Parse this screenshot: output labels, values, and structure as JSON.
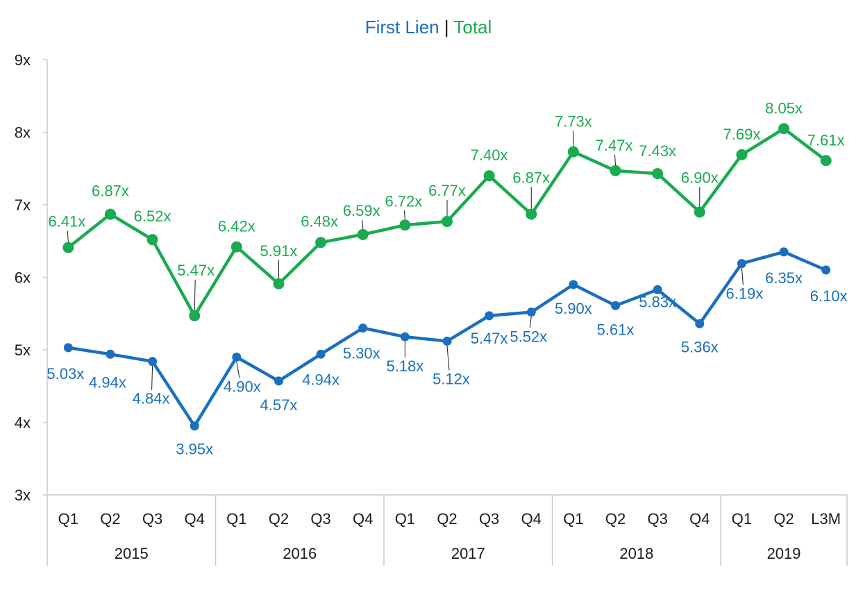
{
  "chart_data": {
    "type": "line",
    "title_parts": [
      {
        "text": "First Lien",
        "color": "#1a6fbf"
      },
      {
        "text": " | ",
        "color": "#1a1a1a"
      },
      {
        "text": "Total",
        "color": "#1aaa50"
      }
    ],
    "categories": [
      "Q1",
      "Q2",
      "Q3",
      "Q4",
      "Q1",
      "Q2",
      "Q3",
      "Q4",
      "Q1",
      "Q2",
      "Q3",
      "Q4",
      "Q1",
      "Q2",
      "Q3",
      "Q4",
      "Q1",
      "Q2",
      "L3M"
    ],
    "year_groups": [
      {
        "label": "2015",
        "start": 0,
        "count": 4
      },
      {
        "label": "2016",
        "start": 4,
        "count": 4
      },
      {
        "label": "2017",
        "start": 8,
        "count": 4
      },
      {
        "label": "2018",
        "start": 12,
        "count": 4
      },
      {
        "label": "2019",
        "start": 16,
        "count": 3
      }
    ],
    "y_ticks": [
      "3x",
      "4x",
      "5x",
      "6x",
      "7x",
      "8x",
      "9x"
    ],
    "ylim": [
      3,
      9
    ],
    "grid": false,
    "series": [
      {
        "name": "Total",
        "color": "#1aaa50",
        "values": [
          6.41,
          6.87,
          6.52,
          5.47,
          6.42,
          5.91,
          6.48,
          6.59,
          6.72,
          6.77,
          7.4,
          6.87,
          7.73,
          7.47,
          7.43,
          6.9,
          7.69,
          8.05,
          7.61
        ],
        "labels": [
          "6.41x",
          "6.87x",
          "6.52x",
          "5.47x",
          "6.42x",
          "5.91x",
          "6.48x",
          "6.59x",
          "6.72x",
          "6.77x",
          "7.40x",
          "6.87x",
          "7.73x",
          "7.47x",
          "7.43x",
          "6.90x",
          "7.69x",
          "8.05x",
          "7.61x"
        ]
      },
      {
        "name": "First Lien",
        "color": "#1a6fbf",
        "values": [
          5.03,
          4.94,
          4.84,
          3.95,
          4.9,
          4.57,
          4.94,
          5.3,
          5.18,
          5.12,
          5.47,
          5.52,
          5.9,
          5.61,
          5.83,
          5.36,
          6.19,
          6.35,
          6.1
        ],
        "labels": [
          "5.03x",
          "4.94x",
          "4.84x",
          "3.95x",
          "4.90x",
          "4.57x",
          "4.94x",
          "5.30x",
          "5.18x",
          "5.12x",
          "5.47x",
          "5.52x",
          "5.90x",
          "5.61x",
          "5.83x",
          "5.36x",
          "6.19x",
          "6.35x",
          "6.10x"
        ]
      }
    ]
  }
}
